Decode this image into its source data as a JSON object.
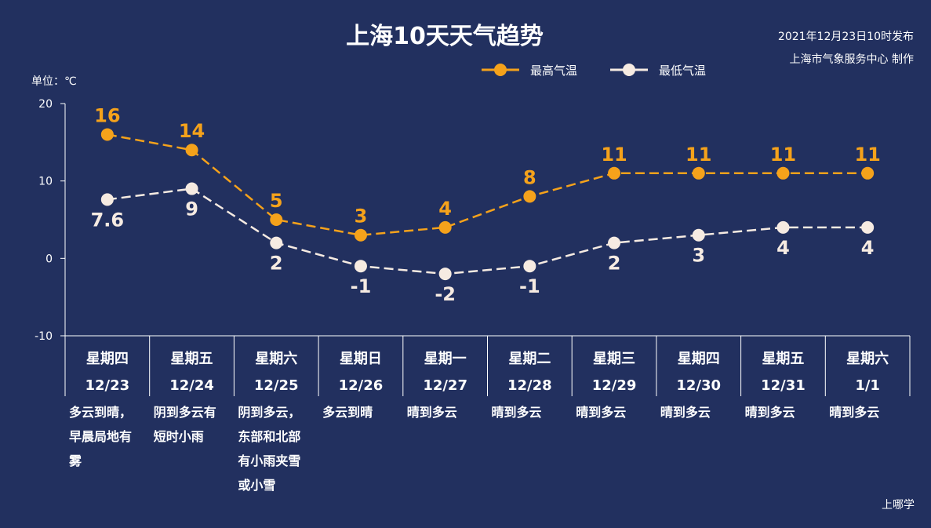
{
  "chart_data": {
    "type": "line",
    "title": "上海10天天气趋势",
    "publish_time": "2021年12月23日10时发布",
    "publisher": "上海市气象服务中心 制作",
    "unit_label": "单位：℃",
    "credit": "上哪学",
    "ylim": [
      -10,
      20
    ],
    "yticks": [
      "20",
      "10",
      "0",
      "-10"
    ],
    "legend_placement": "top-right",
    "categories": [
      {
        "weekday": "星期四",
        "date": "12/23",
        "weather": [
          "多云到晴，",
          "早晨局地有",
          "雾"
        ]
      },
      {
        "weekday": "星期五",
        "date": "12/24",
        "weather": [
          "阴到多云有",
          "短时小雨"
        ]
      },
      {
        "weekday": "星期六",
        "date": "12/25",
        "weather": [
          "阴到多云，",
          "东部和北部",
          "有小雨夹雪",
          "或小雪"
        ]
      },
      {
        "weekday": "星期日",
        "date": "12/26",
        "weather": [
          "多云到晴"
        ]
      },
      {
        "weekday": "星期一",
        "date": "12/27",
        "weather": [
          "晴到多云"
        ]
      },
      {
        "weekday": "星期二",
        "date": "12/28",
        "weather": [
          "晴到多云"
        ]
      },
      {
        "weekday": "星期三",
        "date": "12/29",
        "weather": [
          "晴到多云"
        ]
      },
      {
        "weekday": "星期四",
        "date": "12/30",
        "weather": [
          "晴到多云"
        ]
      },
      {
        "weekday": "星期五",
        "date": "12/31",
        "weather": [
          "晴到多云"
        ]
      },
      {
        "weekday": "星期六",
        "date": "1/1",
        "weather": [
          "晴到多云"
        ]
      }
    ],
    "series": [
      {
        "name": "最高气温",
        "color": "#f5a21b",
        "values": [
          16,
          14,
          5,
          3,
          4,
          8,
          11,
          11,
          11,
          11
        ],
        "labels": [
          "16",
          "14",
          "5",
          "3",
          "4",
          "8",
          "11",
          "11",
          "11",
          "11"
        ]
      },
      {
        "name": "最低气温",
        "color": "#f6ebe2",
        "values": [
          7.6,
          9,
          2,
          -1,
          -2,
          -1,
          2,
          3,
          4,
          4
        ],
        "labels": [
          "7.6",
          "9",
          "2",
          "-1",
          "-2",
          "-1",
          "2",
          "3",
          "4",
          "4"
        ]
      }
    ]
  }
}
